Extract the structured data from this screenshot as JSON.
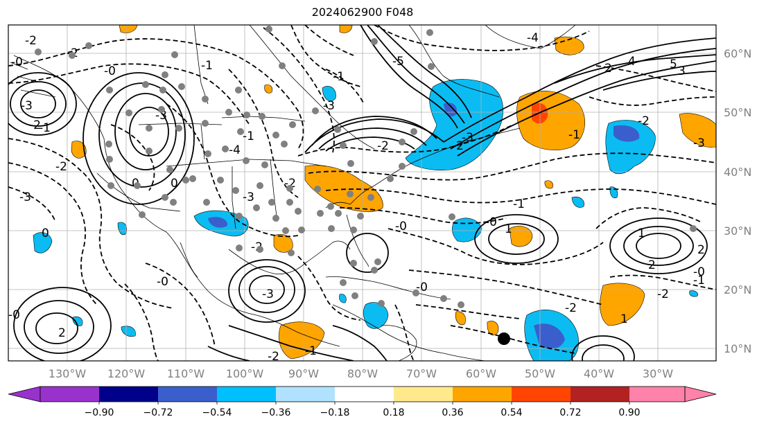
{
  "title": "2024062900 F048",
  "colors": {
    "positive_light": "#ffe98a",
    "positive_orange": "#ffa500",
    "positive_red": "#ff4500",
    "negative_cyan": "#0bbcf2",
    "negative_blue": "#3a5fcd",
    "state_dots": "#808080",
    "marker": "#000000"
  },
  "map": {
    "lon_labels": [
      "130°W",
      "120°W",
      "110°W",
      "100°W",
      "90°W",
      "80°W",
      "70°W",
      "60°W",
      "50°W",
      "40°W",
      "30°W"
    ],
    "lat_labels": [
      "60°N",
      "50°N",
      "40°N",
      "30°N",
      "20°N",
      "10°N"
    ],
    "contour_labels": [
      "-2",
      "-2",
      "-0",
      "-0",
      "-1",
      "-3",
      "-2",
      "-1",
      "-2",
      "-3",
      "-3",
      "-2",
      "-3",
      "-1",
      "-2",
      "-5",
      "-2",
      "-3",
      "-4",
      "-3",
      "-1",
      "-4",
      "-3",
      "-2",
      "-1",
      "-2",
      "-3",
      "-0",
      "-0",
      "-0",
      "-1",
      "-1",
      "-2",
      "-0",
      "-0",
      "-0",
      "-1",
      "-2",
      "-2",
      "4",
      "5",
      "2",
      "3",
      "1",
      "1",
      "2",
      "2",
      "1",
      "0",
      "0",
      "0",
      "2"
    ]
  },
  "colorbar": {
    "ticks": [
      "−0.90",
      "−0.72",
      "−0.54",
      "−0.36",
      "−0.18",
      "0.18",
      "0.36",
      "0.54",
      "0.72",
      "0.90"
    ],
    "colors": [
      "#9932cc",
      "#00008b",
      "#3a5fcd",
      "#00bfff",
      "#b0e2ff",
      "#ffffff",
      "#ffe98a",
      "#ffa500",
      "#ff4500",
      "#b22222",
      "#ff82ab"
    ]
  }
}
